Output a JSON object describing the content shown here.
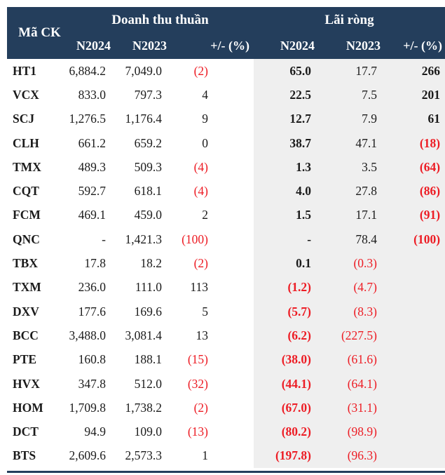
{
  "colors": {
    "header_bg": "#243e5c",
    "negative": "#ed1c24",
    "profit_group_bg": "#efefef",
    "text": "#1b1b1b"
  },
  "chart_data": {
    "type": "table",
    "column_groups": [
      {
        "label": "",
        "span": 1
      },
      {
        "label": "Doanh thu thuần",
        "span": 3
      },
      {
        "label": "Lãi ròng",
        "span": 3
      }
    ],
    "columns": [
      "Mã CK",
      "N2024",
      "N2023",
      "+/- (%)",
      "N2024",
      "N2023",
      "+/- (%)"
    ],
    "negative_format": "parentheses, red",
    "rows": [
      [
        "HT1",
        "6,884.2",
        "7,049.0",
        "(2)",
        "65.0",
        "17.7",
        "266"
      ],
      [
        "VCX",
        "833.0",
        "797.3",
        "4",
        "22.5",
        "7.5",
        "201"
      ],
      [
        "SCJ",
        "1,276.5",
        "1,176.4",
        "9",
        "12.7",
        "7.9",
        "61"
      ],
      [
        "CLH",
        "661.2",
        "659.2",
        "0",
        "38.7",
        "47.1",
        "(18)"
      ],
      [
        "TMX",
        "489.3",
        "509.3",
        "(4)",
        "1.3",
        "3.5",
        "(64)"
      ],
      [
        "CQT",
        "592.7",
        "618.1",
        "(4)",
        "4.0",
        "27.8",
        "(86)"
      ],
      [
        "FCM",
        "469.1",
        "459.0",
        "2",
        "1.5",
        "17.1",
        "(91)"
      ],
      [
        "QNC",
        "-",
        "1,421.3",
        "(100)",
        "-",
        "78.4",
        "(100)"
      ],
      [
        "TBX",
        "17.8",
        "18.2",
        "(2)",
        "0.1",
        "(0.3)",
        ""
      ],
      [
        "TXM",
        "236.0",
        "111.0",
        "113",
        "(1.2)",
        "(4.7)",
        ""
      ],
      [
        "DXV",
        "177.6",
        "169.6",
        "5",
        "(5.7)",
        "(8.3)",
        ""
      ],
      [
        "BCC",
        "3,488.0",
        "3,081.4",
        "13",
        "(6.2)",
        "(227.5)",
        ""
      ],
      [
        "PTE",
        "160.8",
        "188.1",
        "(15)",
        "(38.0)",
        "(61.6)",
        ""
      ],
      [
        "HVX",
        "347.8",
        "512.0",
        "(32)",
        "(44.1)",
        "(64.1)",
        ""
      ],
      [
        "HOM",
        "1,709.8",
        "1,738.2",
        "(2)",
        "(67.0)",
        "(31.1)",
        ""
      ],
      [
        "DCT",
        "94.9",
        "109.0",
        "(13)",
        "(80.2)",
        "(98.9)",
        ""
      ],
      [
        "BTS",
        "2,609.6",
        "2,573.3",
        "1",
        "(197.8)",
        "(96.3)",
        ""
      ]
    ]
  }
}
